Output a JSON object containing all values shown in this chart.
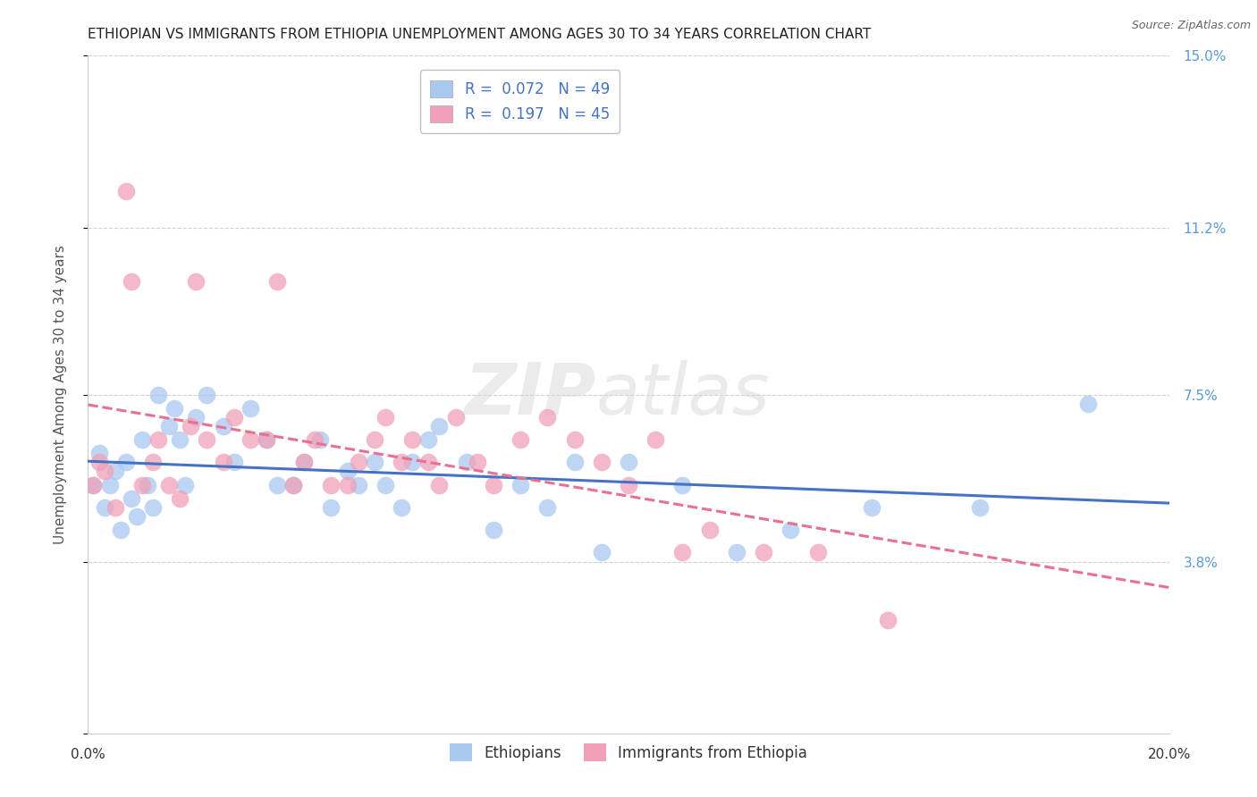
{
  "title": "ETHIOPIAN VS IMMIGRANTS FROM ETHIOPIA UNEMPLOYMENT AMONG AGES 30 TO 34 YEARS CORRELATION CHART",
  "source": "Source: ZipAtlas.com",
  "ylabel": "Unemployment Among Ages 30 to 34 years",
  "xlim": [
    0.0,
    0.2
  ],
  "ylim": [
    0.0,
    0.15
  ],
  "yticks": [
    0.0,
    0.038,
    0.075,
    0.112,
    0.15
  ],
  "ytick_labels": [
    "",
    "3.8%",
    "7.5%",
    "11.2%",
    "15.0%"
  ],
  "xticks": [
    0.0,
    0.05,
    0.1,
    0.15,
    0.2
  ],
  "xtick_labels": [
    "0.0%",
    "",
    "",
    "",
    "20.0%"
  ],
  "grid_color": "#d0d0d0",
  "background_color": "#ffffff",
  "watermark_zip": "ZIP",
  "watermark_atlas": "atlas",
  "series1_name": "Ethiopians",
  "series1_color": "#a8c8f0",
  "series1_R": 0.072,
  "series1_N": 49,
  "series1_x": [
    0.001,
    0.002,
    0.003,
    0.004,
    0.005,
    0.006,
    0.007,
    0.008,
    0.009,
    0.01,
    0.011,
    0.012,
    0.013,
    0.015,
    0.016,
    0.017,
    0.018,
    0.02,
    0.022,
    0.025,
    0.027,
    0.03,
    0.033,
    0.035,
    0.038,
    0.04,
    0.043,
    0.045,
    0.048,
    0.05,
    0.053,
    0.055,
    0.058,
    0.06,
    0.063,
    0.065,
    0.07,
    0.075,
    0.08,
    0.085,
    0.09,
    0.095,
    0.1,
    0.11,
    0.12,
    0.13,
    0.145,
    0.165,
    0.185
  ],
  "series1_y": [
    0.055,
    0.062,
    0.05,
    0.055,
    0.058,
    0.045,
    0.06,
    0.052,
    0.048,
    0.065,
    0.055,
    0.05,
    0.075,
    0.068,
    0.072,
    0.065,
    0.055,
    0.07,
    0.075,
    0.068,
    0.06,
    0.072,
    0.065,
    0.055,
    0.055,
    0.06,
    0.065,
    0.05,
    0.058,
    0.055,
    0.06,
    0.055,
    0.05,
    0.06,
    0.065,
    0.068,
    0.06,
    0.045,
    0.055,
    0.05,
    0.06,
    0.04,
    0.06,
    0.055,
    0.04,
    0.045,
    0.05,
    0.05,
    0.073
  ],
  "series2_name": "Immigrants from Ethiopia",
  "series2_color": "#f0a0b8",
  "series2_R": 0.197,
  "series2_N": 45,
  "series2_x": [
    0.001,
    0.002,
    0.003,
    0.005,
    0.007,
    0.008,
    0.01,
    0.012,
    0.013,
    0.015,
    0.017,
    0.019,
    0.02,
    0.022,
    0.025,
    0.027,
    0.03,
    0.033,
    0.035,
    0.038,
    0.04,
    0.042,
    0.045,
    0.048,
    0.05,
    0.053,
    0.055,
    0.058,
    0.06,
    0.063,
    0.065,
    0.068,
    0.072,
    0.075,
    0.08,
    0.085,
    0.09,
    0.095,
    0.1,
    0.105,
    0.11,
    0.115,
    0.125,
    0.135,
    0.148
  ],
  "series2_y": [
    0.055,
    0.06,
    0.058,
    0.05,
    0.12,
    0.1,
    0.055,
    0.06,
    0.065,
    0.055,
    0.052,
    0.068,
    0.1,
    0.065,
    0.06,
    0.07,
    0.065,
    0.065,
    0.1,
    0.055,
    0.06,
    0.065,
    0.055,
    0.055,
    0.06,
    0.065,
    0.07,
    0.06,
    0.065,
    0.06,
    0.055,
    0.07,
    0.06,
    0.055,
    0.065,
    0.07,
    0.065,
    0.06,
    0.055,
    0.065,
    0.04,
    0.045,
    0.04,
    0.04,
    0.025
  ],
  "series1_line_color": "#4472c4",
  "series2_line_color": "#e87090",
  "legend_box_color": "#ffffff",
  "legend_border_color": "#c0c0c0",
  "right_axis_color": "#5b9bd5",
  "title_color": "#222222",
  "title_fontsize": 11,
  "axis_label_fontsize": 11,
  "tick_fontsize": 11,
  "legend_fontsize": 12
}
